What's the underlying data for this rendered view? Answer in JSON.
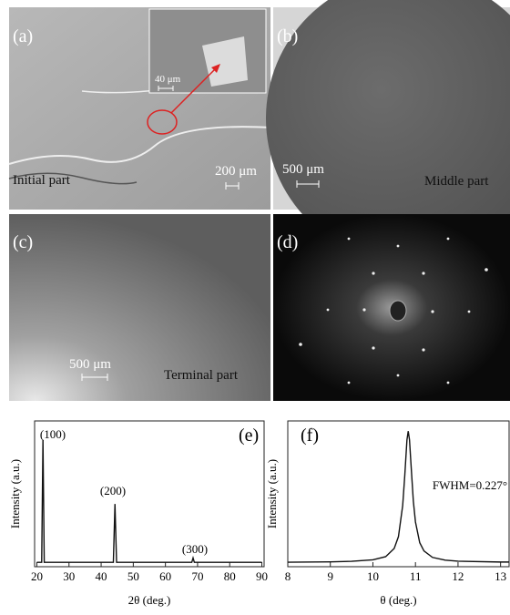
{
  "panels": {
    "a": {
      "label": "(a)",
      "caption": "Initial part",
      "scale": "200 μm",
      "inset_scale": "40 μm"
    },
    "b": {
      "label": "(b)",
      "caption": "Middle part",
      "scale": "500 μm"
    },
    "c": {
      "label": "(c)",
      "caption": "Terminal part",
      "scale": "500 μm"
    },
    "d": {
      "label": "(d)"
    }
  },
  "chart_data": [
    {
      "type": "line",
      "panel_label": "(e)",
      "xlabel": "2θ (deg.)",
      "ylabel": "Intensity (a.u.)",
      "x": [
        20,
        21.5,
        21.9,
        22.3,
        24,
        43.8,
        44.3,
        44.8,
        46,
        68.2,
        68.6,
        69,
        90
      ],
      "values": [
        3,
        3,
        87,
        3,
        3,
        3,
        43,
        3,
        3,
        3,
        6,
        3,
        3
      ],
      "color": "#111111",
      "xlim": [
        19.3,
        90.7
      ],
      "ylim": [
        0,
        100
      ],
      "xticks": [
        20,
        30,
        40,
        50,
        60,
        70,
        80,
        90
      ],
      "annotations": [
        "(100)",
        "(200)",
        "(300)"
      ]
    },
    {
      "type": "line",
      "panel_label": "(f)",
      "xlabel": "θ (deg.)",
      "ylabel": "Intensity (a.u.)",
      "x": [
        8,
        9,
        9.5,
        10,
        10.3,
        10.5,
        10.6,
        10.7,
        10.75,
        10.8,
        10.83,
        10.86,
        10.9,
        10.95,
        11,
        11.1,
        11.2,
        11.4,
        11.7,
        12,
        13,
        13.2
      ],
      "values": [
        3.1,
        3.3,
        3.7,
        4.7,
        6.9,
        12.5,
        20.6,
        42,
        63,
        87,
        93,
        87,
        68,
        45,
        30.7,
        16.5,
        10.8,
        6.4,
        4.5,
        3.8,
        3.2,
        3.2
      ],
      "color": "#111111",
      "xlim": [
        8,
        13.2
      ],
      "ylim": [
        0,
        100
      ],
      "xticks": [
        8,
        9,
        10,
        11,
        12,
        13
      ],
      "annotations": [
        "FWHM=0.227°"
      ]
    }
  ]
}
